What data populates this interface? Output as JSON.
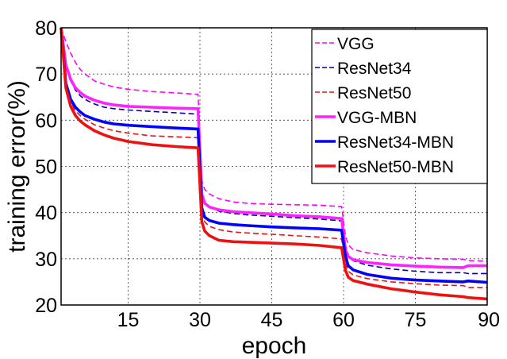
{
  "chart_data": {
    "type": "line",
    "title": "",
    "xlabel": "epoch",
    "ylabel": "training error(%)",
    "xlim": [
      1,
      90
    ],
    "ylim": [
      20,
      80
    ],
    "xticks": [
      15,
      30,
      45,
      60,
      75,
      90
    ],
    "yticks": [
      20,
      30,
      40,
      50,
      60,
      70,
      80
    ],
    "grid": true,
    "legend_position": "top-right",
    "series": [
      {
        "name": "VGG",
        "color": "#ff00ff",
        "style": "dashed",
        "x": [
          1,
          2,
          3,
          4,
          5,
          6,
          8,
          10,
          12,
          15,
          20,
          25,
          29.6,
          30.4,
          31,
          32,
          34,
          37,
          40,
          45,
          50,
          55,
          59.6,
          60.4,
          61,
          62,
          65,
          70,
          75,
          80,
          85,
          86,
          90
        ],
        "y": [
          80,
          77,
          74.5,
          72.5,
          71,
          70,
          68.5,
          67.8,
          67.2,
          66.7,
          66.2,
          65.9,
          65.6,
          47,
          45,
          44,
          43,
          42.3,
          42,
          41.8,
          41.7,
          41.6,
          41.3,
          35,
          33,
          32,
          31.3,
          30.6,
          30.2,
          30,
          29.9,
          29.6,
          29.5
        ]
      },
      {
        "name": "ResNet34",
        "color": "#0000aa",
        "style": "dashed",
        "x": [
          1,
          2,
          3,
          4,
          5,
          6,
          8,
          10,
          12,
          15,
          20,
          25,
          29.6,
          30.4,
          31,
          32,
          34,
          37,
          40,
          45,
          50,
          55,
          59.6,
          60.4,
          61,
          62,
          65,
          70,
          75,
          80,
          85,
          86,
          90
        ],
        "y": [
          80,
          71.5,
          68.5,
          66.5,
          65.3,
          64.5,
          63.5,
          62.8,
          62.5,
          62.2,
          61.9,
          61.6,
          61.3,
          44,
          42,
          41.2,
          40.3,
          39.8,
          39.5,
          39.2,
          38.9,
          38.6,
          38.2,
          33,
          30.5,
          29.6,
          28.6,
          27.8,
          27.3,
          27,
          27,
          26.8,
          26.8
        ]
      },
      {
        "name": "ResNet50",
        "color": "#ee1111",
        "style": "dashed",
        "x": [
          1,
          2,
          3,
          4,
          5,
          6,
          8,
          10,
          12,
          15,
          20,
          25,
          29.6,
          30.4,
          31,
          32,
          34,
          37,
          40,
          45,
          50,
          55,
          59.6,
          60.4,
          61,
          62,
          65,
          70,
          75,
          80,
          85,
          86,
          90
        ],
        "y": [
          80,
          68,
          64,
          62,
          61,
          60.2,
          59,
          58.3,
          57.7,
          57.2,
          56.6,
          56.4,
          56.2,
          40,
          38,
          37,
          36.3,
          35.8,
          35.6,
          35.3,
          35,
          34.7,
          34.3,
          29,
          27.3,
          26.5,
          25.7,
          25,
          24.6,
          24.3,
          24.2,
          23.8,
          23.8
        ]
      },
      {
        "name": "VGG-MBN",
        "color": "#ff22ff",
        "style": "solid",
        "x": [
          1,
          2,
          3,
          4,
          5,
          6,
          8,
          10,
          12,
          15,
          20,
          25,
          29.6,
          30.4,
          31,
          32,
          34,
          37,
          40,
          45,
          50,
          55,
          59.6,
          60.4,
          61,
          62,
          65,
          70,
          75,
          80,
          85,
          86,
          90
        ],
        "y": [
          80,
          72,
          68.8,
          67,
          66,
          65.2,
          64.3,
          63.7,
          63.3,
          63,
          62.8,
          62.6,
          62.5,
          44,
          42,
          41.2,
          40.6,
          40.2,
          40,
          39.7,
          39.3,
          39.1,
          38.7,
          32,
          30.5,
          29.8,
          29.2,
          28.7,
          28.4,
          28.2,
          28.1,
          28.5,
          28.5
        ]
      },
      {
        "name": "ResNet34-MBN",
        "color": "#0000ff",
        "style": "solid",
        "x": [
          1,
          2,
          3,
          4,
          5,
          6,
          8,
          10,
          12,
          15,
          20,
          25,
          29.6,
          30.4,
          31,
          32,
          34,
          37,
          40,
          45,
          50,
          55,
          59.6,
          60.4,
          61,
          62,
          65,
          70,
          75,
          80,
          85,
          86,
          90
        ],
        "y": [
          80,
          68,
          64.5,
          62.8,
          61.8,
          61,
          60.2,
          59.6,
          59.2,
          58.9,
          58.6,
          58.3,
          58.1,
          41,
          39,
          38.3,
          37.7,
          37.4,
          37.2,
          36.9,
          36.7,
          36.5,
          36.2,
          30.5,
          28.5,
          27.6,
          26.6,
          25.8,
          25.4,
          25.2,
          25,
          25.2,
          24.9
        ]
      },
      {
        "name": "ResNet50-MBN",
        "color": "#ee1111",
        "style": "solid",
        "x": [
          1,
          2,
          3,
          4,
          5,
          6,
          8,
          10,
          12,
          15,
          20,
          25,
          29.6,
          30.4,
          31,
          32,
          34,
          37,
          40,
          45,
          50,
          55,
          59.6,
          60.4,
          61,
          62,
          65,
          70,
          75,
          80,
          85,
          86,
          90
        ],
        "y": [
          80,
          67,
          63,
          61,
          59.8,
          59,
          57.7,
          56.8,
          56.1,
          55.4,
          54.7,
          54.3,
          54,
          38,
          36,
          35,
          34,
          33.7,
          33.6,
          33.4,
          33.2,
          32.9,
          32.4,
          27.5,
          26,
          25.3,
          24.5,
          23.5,
          22.8,
          22.2,
          21.8,
          21.6,
          21.3
        ]
      }
    ]
  }
}
